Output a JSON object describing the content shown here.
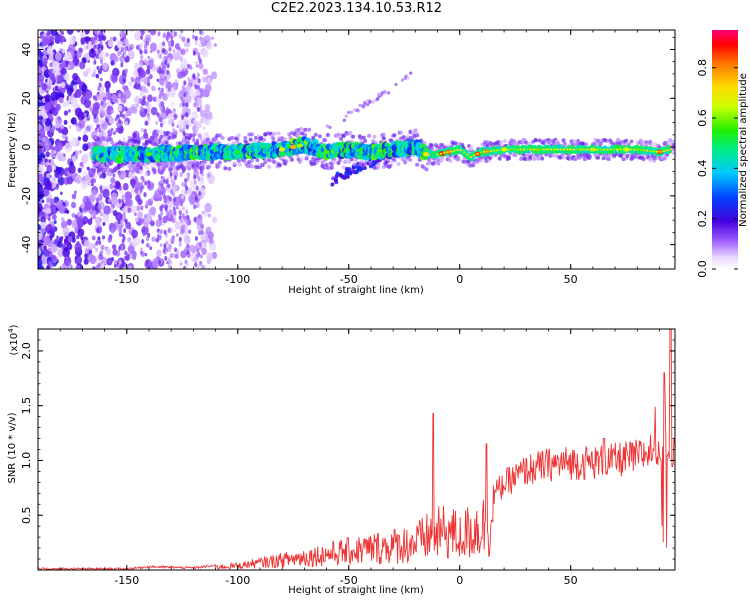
{
  "title": "C2E2.2023.134.10.53.R12",
  "chart_data": [
    {
      "type": "heatmap",
      "xlabel": "Height of straight line (km)",
      "ylabel": "Frequency (Hz)",
      "xlim": [
        -190,
        97
      ],
      "ylim": [
        -50,
        48
      ],
      "xticks": [
        -150,
        -100,
        -50,
        0,
        50
      ],
      "yticks": [
        -40,
        -20,
        0,
        20,
        40
      ],
      "colorbar": {
        "label": "Normalized spectral amplitude",
        "range": [
          0.0,
          0.95
        ],
        "ticks": [
          "0.0",
          "0.2",
          "0.4",
          "0.6",
          "0.8"
        ]
      },
      "ridge": {
        "description_points_x": [
          -160,
          -140,
          -120,
          -100,
          -80,
          -70,
          -60,
          -50,
          -40,
          -30,
          -20,
          -15,
          -10,
          -5,
          0,
          5,
          10,
          20,
          40,
          60,
          80,
          90,
          95
        ],
        "description_points_y": [
          -3,
          -3,
          -2,
          -2,
          -1,
          1,
          -2,
          -1,
          -2,
          -1,
          0,
          -3,
          -3,
          -2,
          -1,
          -4,
          -2,
          -1,
          -1,
          -1,
          -1,
          -2,
          -1
        ]
      }
    },
    {
      "type": "line",
      "xlabel": "Height of straight line (km)",
      "ylabel": "SNR (10 * v/v)",
      "yscale_note": "(x10",
      "yscale_exp": "4",
      "xlim": [
        -190,
        97
      ],
      "ylim": [
        0,
        2.2
      ],
      "xticks": [
        -150,
        -100,
        -50,
        0,
        50
      ],
      "yticks": [
        0.5,
        1.0,
        1.5,
        2.0
      ],
      "ytick_labels": [
        "0.5",
        "1.0",
        "1.5",
        "2.0"
      ],
      "color": "#ee3333",
      "envelope": {
        "x": [
          -190,
          -150,
          -140,
          -120,
          -110,
          -100,
          -90,
          -80,
          -70,
          -60,
          -50,
          -40,
          -30,
          -20,
          -15,
          -12,
          -10,
          -5,
          0,
          5,
          10,
          12,
          15,
          20,
          30,
          40,
          50,
          60,
          70,
          80,
          85,
          90,
          92,
          94,
          97
        ],
        "y": [
          0.01,
          0.01,
          0.03,
          0.02,
          0.04,
          0.06,
          0.1,
          0.14,
          0.18,
          0.22,
          0.26,
          0.3,
          0.34,
          0.38,
          0.45,
          0.55,
          0.5,
          0.55,
          0.45,
          0.55,
          0.62,
          0.6,
          0.7,
          0.8,
          0.93,
          0.98,
          1.0,
          1.0,
          1.02,
          1.05,
          1.1,
          1.15,
          1.2,
          1.1,
          1.05
        ]
      },
      "peaks": [
        {
          "x": -12,
          "y": 1.43
        },
        {
          "x": 12,
          "y": 1.15
        },
        {
          "x": 65,
          "y": 1.2
        },
        {
          "x": 92,
          "y": 1.8
        },
        {
          "x": 95,
          "y": 2.2
        }
      ]
    }
  ]
}
